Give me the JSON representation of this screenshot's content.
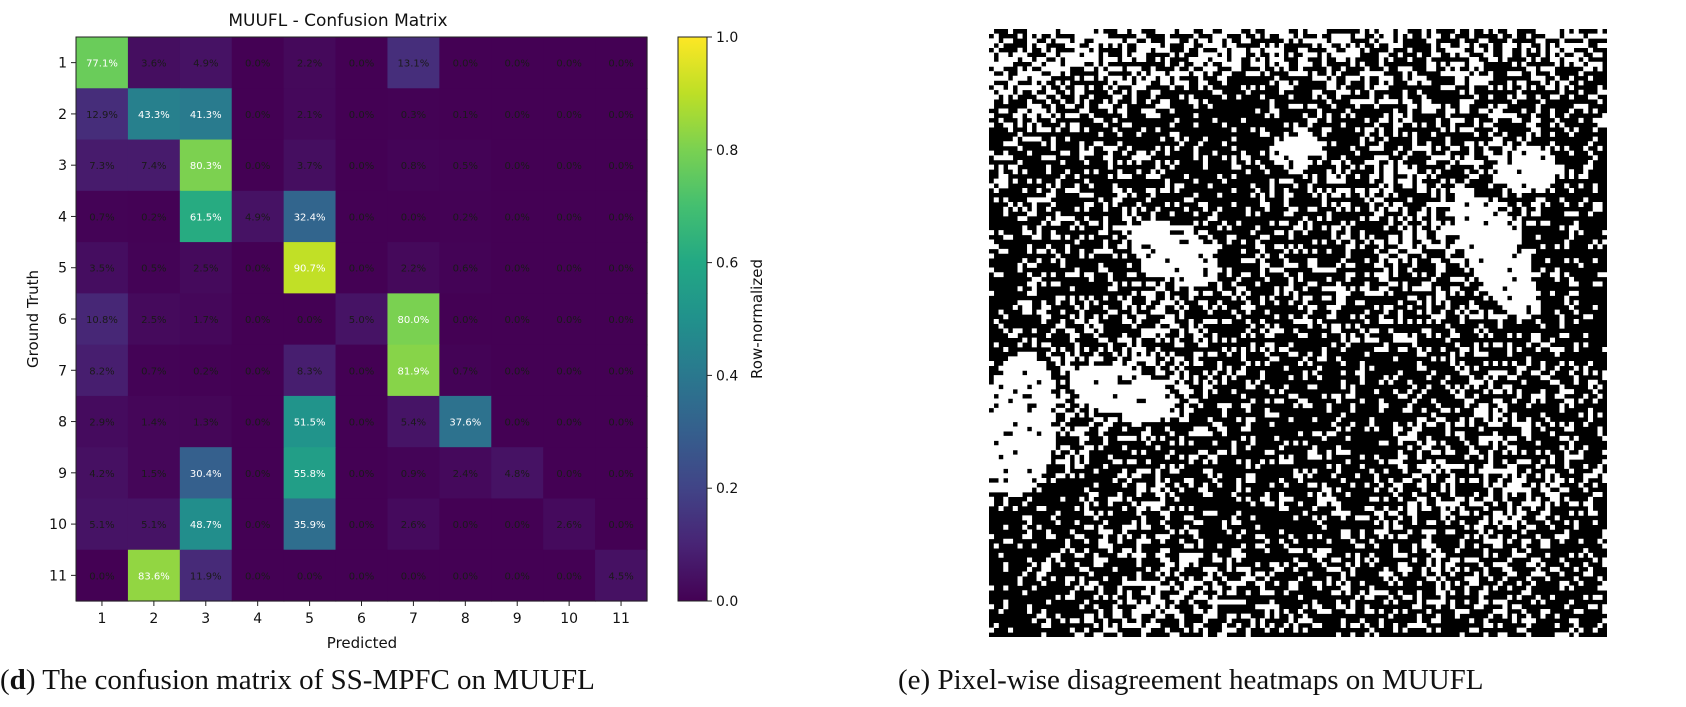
{
  "chart_data": [
    {
      "type": "heatmap",
      "title": "MUUFL - Confusion Matrix",
      "xlabel": "Predicted",
      "ylabel": "Ground Truth",
      "x_categories": [
        "1",
        "2",
        "3",
        "4",
        "5",
        "6",
        "7",
        "8",
        "9",
        "10",
        "11"
      ],
      "y_categories": [
        "1",
        "2",
        "3",
        "4",
        "5",
        "6",
        "7",
        "8",
        "9",
        "10",
        "11"
      ],
      "values": [
        [
          77.1,
          3.6,
          4.9,
          0.0,
          2.2,
          0.0,
          13.1,
          0.0,
          0.0,
          0.0,
          0.0
        ],
        [
          12.9,
          43.3,
          41.3,
          0.0,
          2.1,
          0.0,
          0.3,
          0.1,
          0.0,
          0.0,
          0.0
        ],
        [
          7.3,
          7.4,
          80.3,
          0.0,
          3.7,
          0.0,
          0.8,
          0.5,
          0.0,
          0.0,
          0.0
        ],
        [
          0.7,
          0.2,
          61.5,
          4.9,
          32.4,
          0.0,
          0.0,
          0.2,
          0.0,
          0.0,
          0.0
        ],
        [
          3.5,
          0.5,
          2.5,
          0.0,
          90.7,
          0.0,
          2.2,
          0.6,
          0.0,
          0.0,
          0.0
        ],
        [
          10.8,
          2.5,
          1.7,
          0.0,
          0.0,
          5.0,
          80.0,
          0.0,
          0.0,
          0.0,
          0.0
        ],
        [
          8.2,
          0.7,
          0.2,
          0.0,
          8.3,
          0.0,
          81.9,
          0.7,
          0.0,
          0.0,
          0.0
        ],
        [
          2.9,
          1.4,
          1.3,
          0.0,
          51.5,
          0.0,
          5.4,
          37.6,
          0.0,
          0.0,
          0.0
        ],
        [
          4.2,
          1.5,
          30.4,
          0.0,
          55.8,
          0.0,
          0.9,
          2.4,
          4.8,
          0.0,
          0.0
        ],
        [
          5.1,
          5.1,
          48.7,
          0.0,
          35.9,
          0.0,
          2.6,
          0.0,
          0.0,
          2.6,
          0.0
        ],
        [
          0.0,
          83.6,
          11.9,
          0.0,
          0.0,
          0.0,
          0.0,
          0.0,
          0.0,
          0.0,
          4.5
        ]
      ],
      "cell_suffix": "%",
      "colorbar": {
        "label": "Row-normalized",
        "range": [
          0,
          1
        ],
        "ticks": [
          "0.0",
          "0.2",
          "0.4",
          "0.6",
          "0.8",
          "1.0"
        ],
        "colormap": "viridis"
      }
    }
  ],
  "disagreement_map": {
    "colors": {
      "agree": "#000000",
      "disagree": "#ffffff"
    }
  },
  "captions": {
    "d": {
      "letter": "d",
      "text": ") The confusion matrix of SS-MPFC on MUUFL"
    },
    "e": {
      "letter": "e",
      "text": ") Pixel-wise disagreement heatmaps on MUUFL"
    }
  }
}
